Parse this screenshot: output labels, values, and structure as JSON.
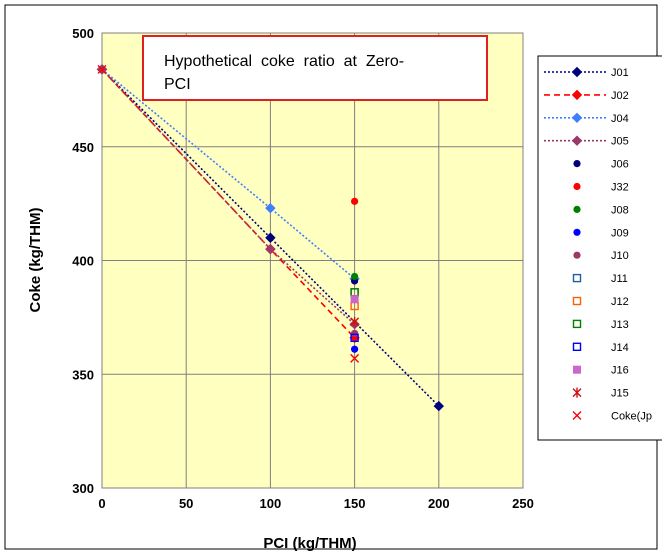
{
  "chart_data": {
    "type": "scatter",
    "title": "",
    "xlabel": "PCI (kg/THM)",
    "ylabel": "Coke (kg/THM)",
    "xlim": [
      0,
      250
    ],
    "ylim": [
      300,
      500
    ],
    "x_ticks": [
      "0",
      "50",
      "100",
      "150",
      "200",
      "250"
    ],
    "y_ticks": [
      "300",
      "350",
      "400",
      "450",
      "500"
    ],
    "grid": true,
    "legend_position": "right",
    "annotation": {
      "lines": [
        "Hypothetical  coke  ratio  at  Zero-",
        "PCI"
      ],
      "border_color": "#e01e24"
    },
    "plot_background": "#ffffc0",
    "series": [
      {
        "name": "J01",
        "kind": "line",
        "marker": "diamond",
        "color": "#00007f",
        "dash": "2,2",
        "points": [
          [
            0,
            484
          ],
          [
            100,
            410
          ],
          [
            200,
            336
          ]
        ]
      },
      {
        "name": "J02",
        "kind": "line",
        "marker": "diamond",
        "color": "#ff0000",
        "dash": "6,4",
        "points": [
          [
            0,
            484
          ],
          [
            100,
            405
          ],
          [
            150,
            366
          ]
        ]
      },
      {
        "name": "J04",
        "kind": "line",
        "marker": "diamond",
        "color": "#3f7fff",
        "dash": "2,2",
        "points": [
          [
            0,
            484
          ],
          [
            100,
            423
          ],
          [
            150,
            392
          ]
        ]
      },
      {
        "name": "J05",
        "kind": "line",
        "marker": "diamond",
        "color": "#9b3a6a",
        "dash": "2,2",
        "points": [
          [
            0,
            484
          ],
          [
            100,
            405
          ],
          [
            150,
            372
          ]
        ]
      },
      {
        "name": "J06",
        "kind": "point",
        "marker": "circle",
        "color": "#00007f",
        "points": [
          [
            150,
            391
          ]
        ]
      },
      {
        "name": "J32",
        "kind": "point",
        "marker": "circle",
        "color": "#ff0000",
        "points": [
          [
            150,
            426
          ]
        ]
      },
      {
        "name": "J08",
        "kind": "point",
        "marker": "circle",
        "color": "#008000",
        "points": [
          [
            150,
            393
          ]
        ]
      },
      {
        "name": "J09",
        "kind": "point",
        "marker": "circle",
        "color": "#0000ff",
        "points": [
          [
            150,
            361
          ]
        ]
      },
      {
        "name": "J10",
        "kind": "point",
        "marker": "circle",
        "color": "#9b3a6a",
        "points": [
          [
            150,
            368
          ]
        ]
      },
      {
        "name": "J11",
        "kind": "point",
        "marker": "square-open",
        "color": "#1f5fa0",
        "points": [
          [
            150,
            386
          ]
        ]
      },
      {
        "name": "J12",
        "kind": "point",
        "marker": "square-open",
        "color": "#ff6000",
        "points": [
          [
            150,
            380
          ]
        ]
      },
      {
        "name": "J13",
        "kind": "point",
        "marker": "square-open",
        "color": "#008000",
        "points": [
          [
            150,
            386
          ]
        ]
      },
      {
        "name": "J14",
        "kind": "point",
        "marker": "square-open",
        "color": "#0000ff",
        "points": [
          [
            150,
            366
          ]
        ]
      },
      {
        "name": "J16",
        "kind": "point",
        "marker": "square-filled",
        "color": "#cc66cc",
        "points": [
          [
            150,
            383
          ]
        ]
      },
      {
        "name": "J15",
        "kind": "point",
        "marker": "asterisk",
        "color": "#d01010",
        "points": [
          [
            150,
            373
          ]
        ]
      },
      {
        "name": "Coke(Jp",
        "kind": "point",
        "marker": "x",
        "color": "#ff0000",
        "points": [
          [
            0,
            484
          ],
          [
            150,
            357
          ]
        ]
      }
    ]
  }
}
